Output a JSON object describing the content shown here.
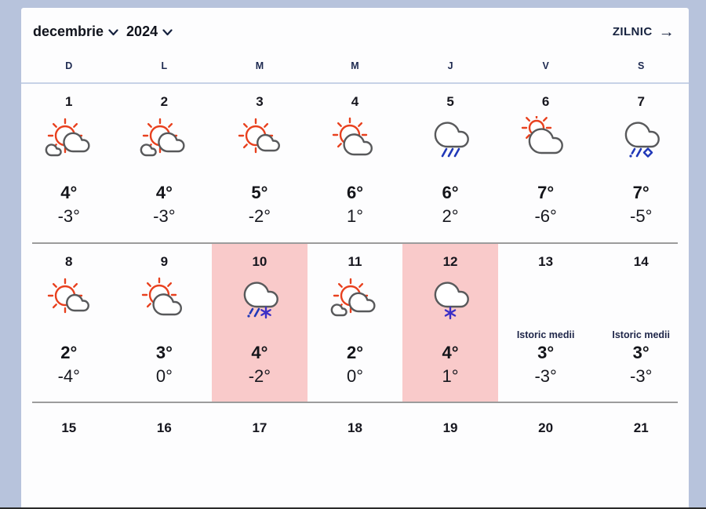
{
  "header": {
    "month_label": "decembrie",
    "year_label": "2024",
    "daily_link_label": "ZILNIC",
    "arrow_icon": "→",
    "chevron_icon": "chevron-down"
  },
  "weekdays": [
    "D",
    "L",
    "M",
    "M",
    "J",
    "V",
    "S"
  ],
  "colors": {
    "page_background": "#b7c3dc",
    "card_background": "#fdfdfe",
    "highlight_pink": "#f9caca",
    "sun_red": "#e8411f",
    "cloud_gray": "#58595b",
    "rain_blue": "#2038b8",
    "snow_purple": "#3c2fc6",
    "divider_blue": "#c7d2e7",
    "divider_gray": "#9c9c9c"
  },
  "weeks": [
    {
      "days": [
        {
          "date": "1",
          "icon": "sun-clouds",
          "high": "4°",
          "low": "-3°",
          "highlight": false
        },
        {
          "date": "2",
          "icon": "sun-clouds",
          "high": "4°",
          "low": "-3°",
          "highlight": false
        },
        {
          "date": "3",
          "icon": "sun-small-cloud",
          "high": "5°",
          "low": "-2°",
          "highlight": false
        },
        {
          "date": "4",
          "icon": "sun-cloud",
          "high": "6°",
          "low": "1°",
          "highlight": false
        },
        {
          "date": "5",
          "icon": "cloud-rain",
          "high": "6°",
          "low": "2°",
          "highlight": false
        },
        {
          "date": "6",
          "icon": "cloud-sun",
          "high": "7°",
          "low": "-6°",
          "highlight": false
        },
        {
          "date": "7",
          "icon": "cloud-sleet",
          "high": "7°",
          "low": "-5°",
          "highlight": false
        }
      ]
    },
    {
      "days": [
        {
          "date": "8",
          "icon": "sun-small-cloud",
          "high": "2°",
          "low": "-4°",
          "highlight": false
        },
        {
          "date": "9",
          "icon": "sun-cloud",
          "high": "3°",
          "low": "0°",
          "highlight": false
        },
        {
          "date": "10",
          "icon": "cloud-rain-snow",
          "high": "4°",
          "low": "-2°",
          "highlight": true
        },
        {
          "date": "11",
          "icon": "sun-clouds",
          "high": "2°",
          "low": "0°",
          "highlight": false
        },
        {
          "date": "12",
          "icon": "cloud-snow",
          "high": "4°",
          "low": "1°",
          "highlight": true
        },
        {
          "date": "13",
          "icon": "none",
          "label": "Istoric medii",
          "high": "3°",
          "low": "-3°",
          "highlight": false
        },
        {
          "date": "14",
          "icon": "none",
          "label": "Istoric medii",
          "high": "3°",
          "low": "-3°",
          "highlight": false
        }
      ]
    },
    {
      "dates_only": true,
      "days": [
        {
          "date": "15"
        },
        {
          "date": "16"
        },
        {
          "date": "17"
        },
        {
          "date": "18"
        },
        {
          "date": "19"
        },
        {
          "date": "20"
        },
        {
          "date": "21"
        }
      ]
    }
  ]
}
